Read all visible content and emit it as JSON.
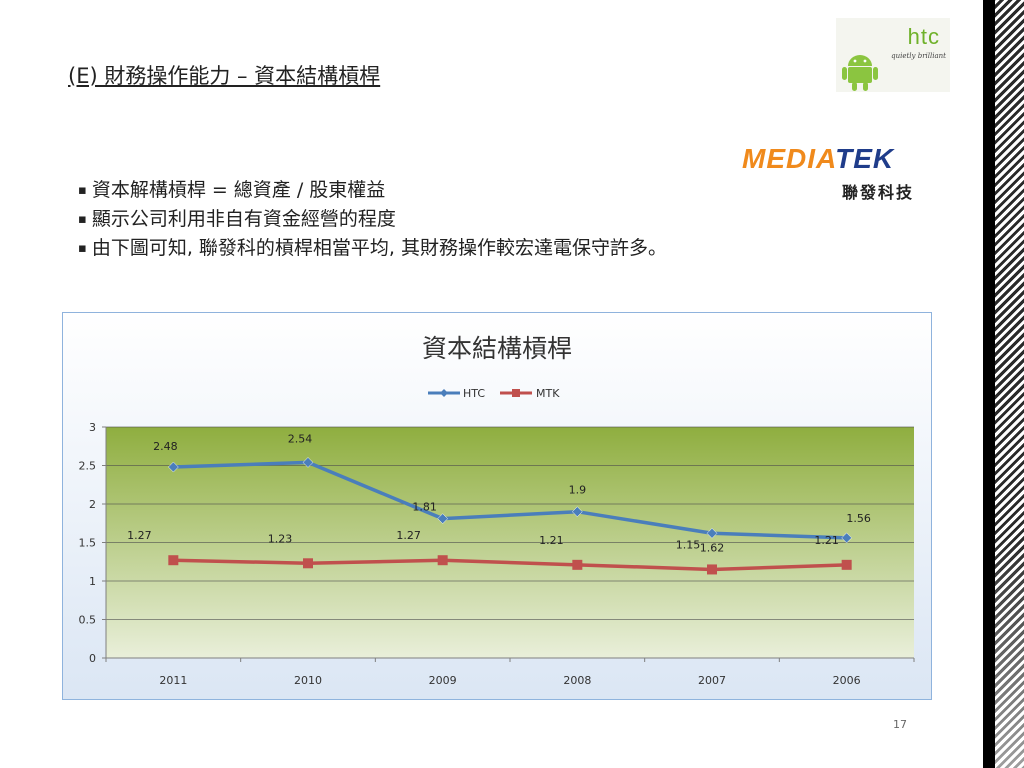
{
  "slide": {
    "title": "(E) 財務操作能力 – 資本結構槓桿",
    "bullets": [
      "資本解構槓桿 = 總資產 / 股東權益",
      "顯示公司利用非自有資金經營的程度",
      "由下圖可知, 聯發科的槓桿相當平均, 其財務操作較宏達電保守許多。"
    ],
    "page_number": "17"
  },
  "logos": {
    "htc_word": "htc",
    "htc_tagline": "quietly brilliant",
    "mtk_part1": "MEDIA",
    "mtk_part2": "TEK",
    "mtk_chinese": "聯發科技"
  },
  "colors": {
    "htc_series": "#4a7ebb",
    "mtk_series": "#c0504d",
    "plot_top": "#8fae3f",
    "plot_bottom": "#e9efda",
    "chart_border": "#8fb3dd"
  },
  "chart_data": {
    "type": "line",
    "title": "資本結構槓桿",
    "categories": [
      "2011",
      "2010",
      "2009",
      "2008",
      "2007",
      "2006"
    ],
    "series": [
      {
        "name": "HTC",
        "values": [
          2.48,
          2.54,
          1.81,
          1.9,
          1.62,
          1.56
        ],
        "labels": [
          "2.48",
          "2.54",
          "1.81",
          "1.9",
          "1.62",
          "1.56"
        ]
      },
      {
        "name": "MTK",
        "values": [
          1.27,
          1.23,
          1.27,
          1.21,
          1.15,
          1.21
        ],
        "labels": [
          "1.27",
          "1.23",
          "1.27",
          "1.21",
          "1.15",
          "1.21"
        ]
      }
    ],
    "ylim": [
      0,
      3
    ],
    "yticks": [
      "0",
      "0.5",
      "1",
      "1.5",
      "2",
      "2.5",
      "3"
    ],
    "legend": "top-center",
    "grid": true,
    "xlabel": "",
    "ylabel": ""
  }
}
